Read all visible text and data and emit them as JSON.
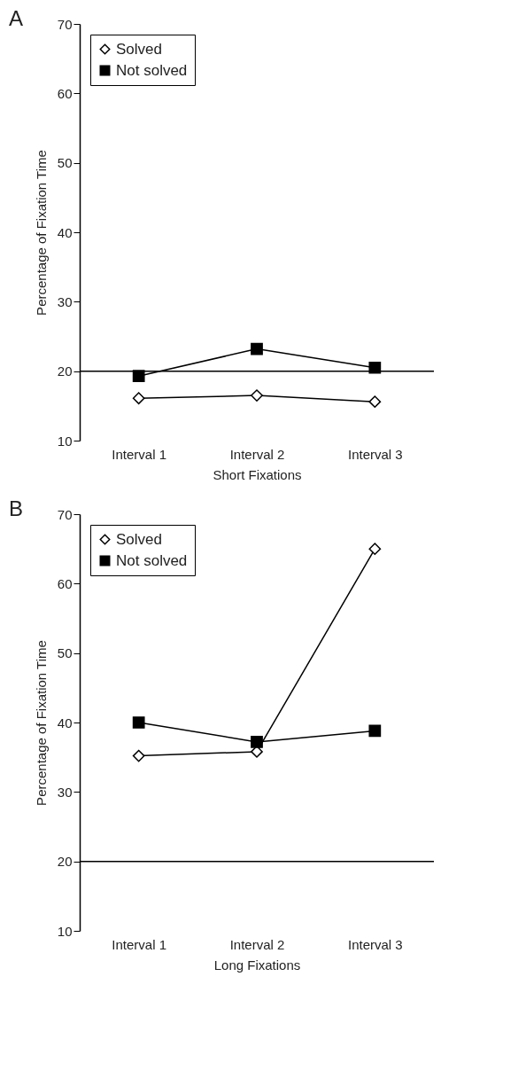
{
  "chart_data": [
    {
      "type": "line",
      "title": "A",
      "xlabel": "Short Fixations",
      "ylabel": "Percentage of Fixation Time",
      "categories": [
        "Interval 1",
        "Interval 2",
        "Interval 3"
      ],
      "ylim": [
        10,
        70
      ],
      "yticks": [
        10,
        20,
        30,
        40,
        50,
        60,
        70
      ],
      "grid": false,
      "legend": "top left",
      "series": [
        {
          "name": "Solved",
          "color": "#000000",
          "marker": "diamond",
          "values": [
            16.1,
            16.5,
            15.6
          ]
        },
        {
          "name": "Not solved",
          "color": "#000000",
          "marker": "square",
          "values": [
            19.3,
            23.2,
            20.5
          ]
        }
      ],
      "ref_lines": [
        {
          "axis": "y",
          "value": 20
        }
      ]
    },
    {
      "type": "line",
      "title": "B",
      "xlabel": "Long Fixations",
      "ylabel": "Percentage of Fixation Time",
      "categories": [
        "Interval 1",
        "Interval 2",
        "Interval 3"
      ],
      "ylim": [
        10,
        70
      ],
      "yticks": [
        10,
        20,
        30,
        40,
        50,
        60,
        70
      ],
      "grid": false,
      "legend": "top left",
      "series": [
        {
          "name": "Solved",
          "color": "#000000",
          "marker": "diamond",
          "values": [
            35.2,
            35.8,
            65.0
          ]
        },
        {
          "name": "Not solved",
          "color": "#000000",
          "marker": "square",
          "values": [
            40.0,
            37.2,
            38.8
          ]
        }
      ],
      "ref_lines": [
        {
          "axis": "y",
          "value": 20
        }
      ]
    }
  ]
}
